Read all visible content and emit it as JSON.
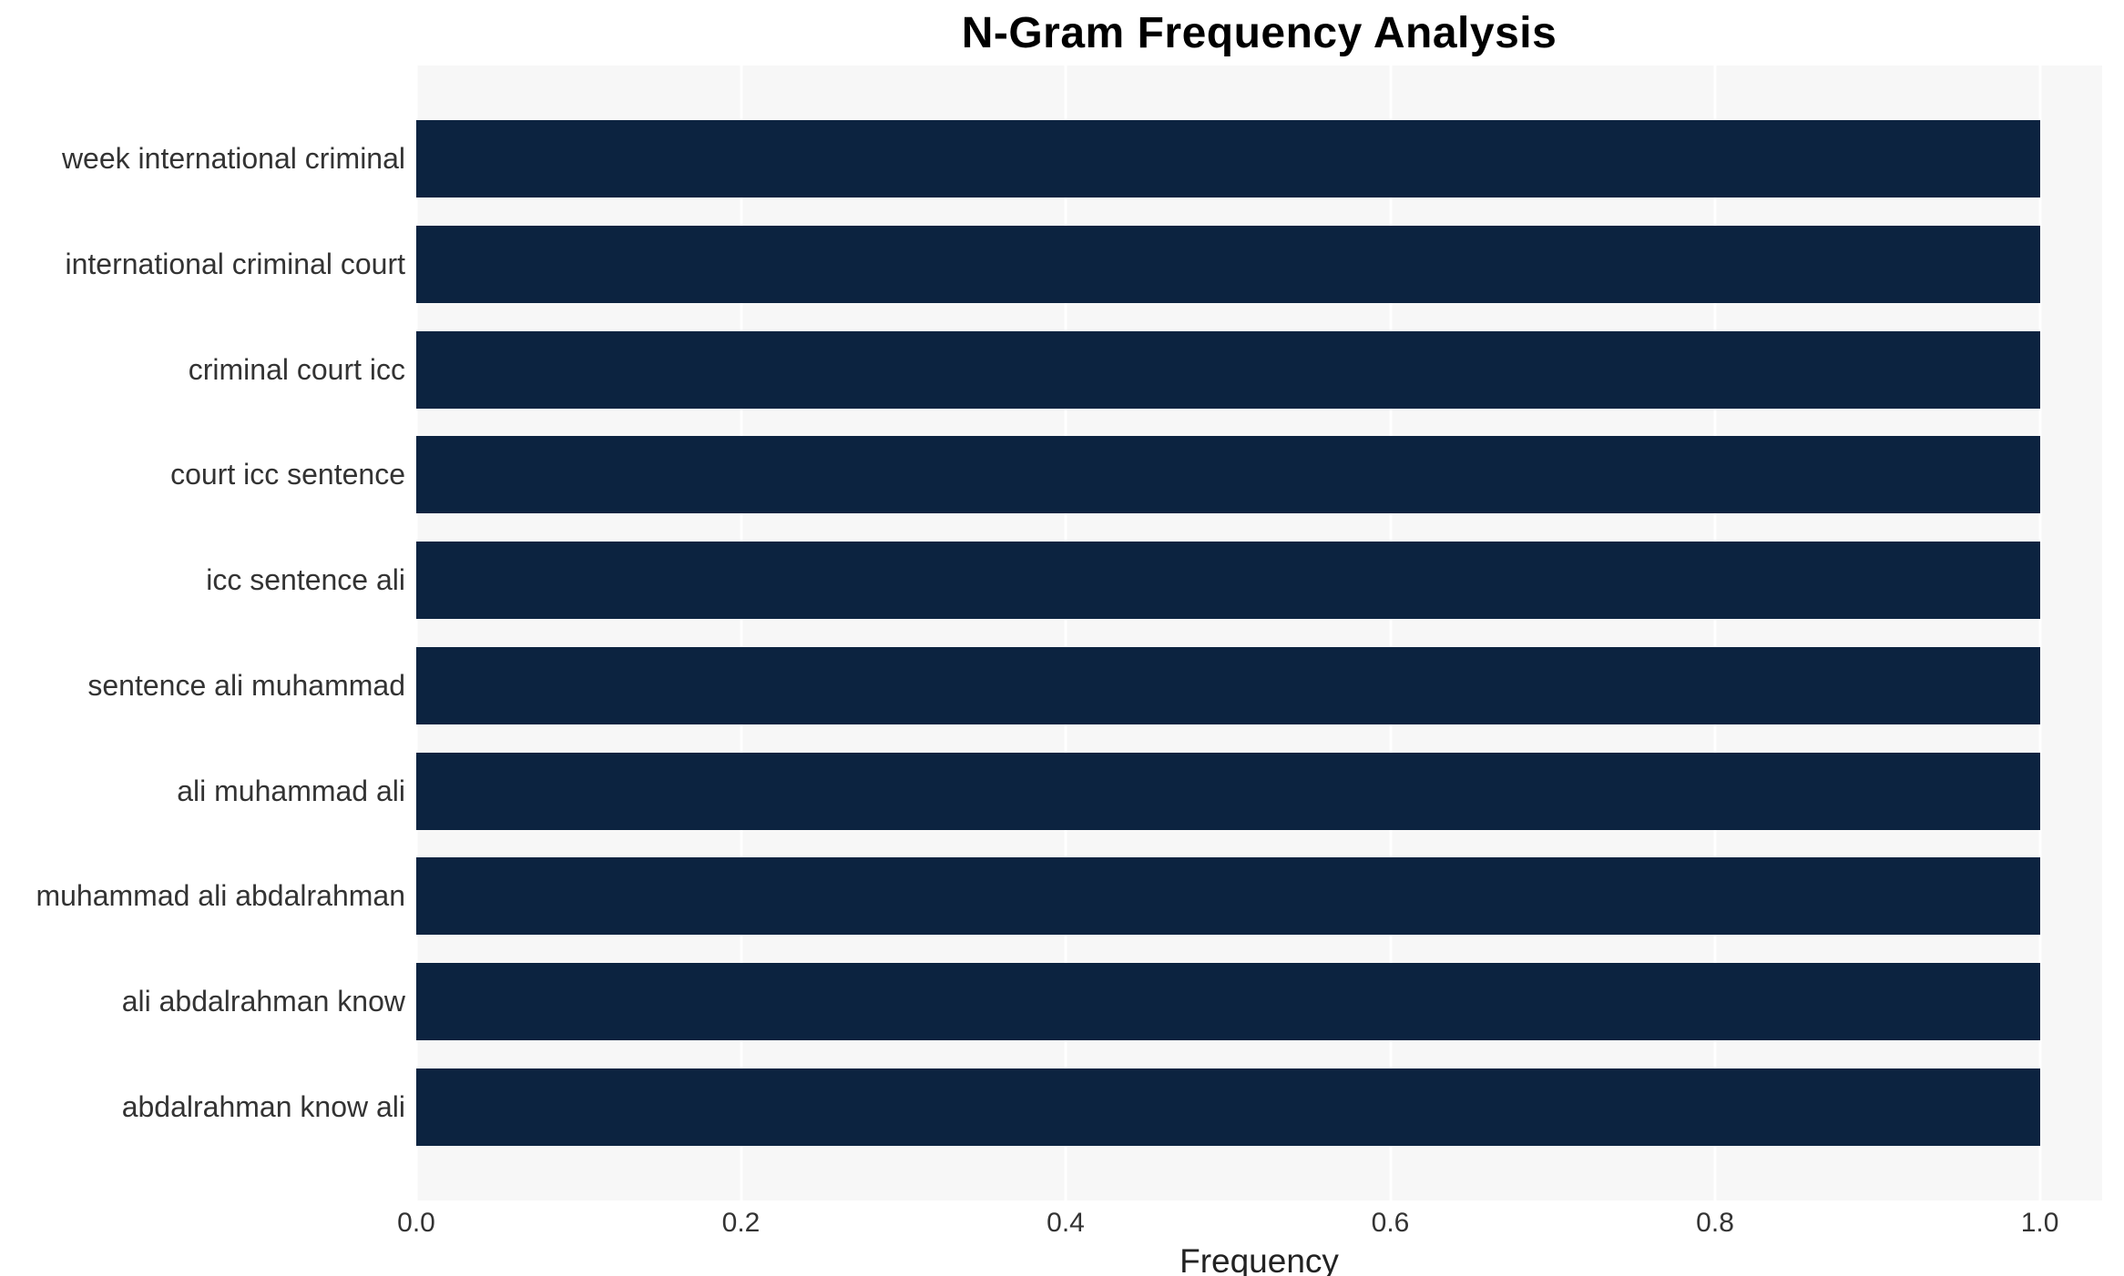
{
  "chart_data": {
    "type": "bar",
    "orientation": "horizontal",
    "title": "N-Gram Frequency Analysis",
    "xlabel": "Frequency",
    "ylabel": "",
    "categories": [
      "week international criminal",
      "international criminal court",
      "criminal court icc",
      "court icc sentence",
      "icc sentence ali",
      "sentence ali muhammad",
      "ali muhammad ali",
      "muhammad ali abdalrahman",
      "ali abdalrahman know",
      "abdalrahman know ali"
    ],
    "values": [
      1.0,
      1.0,
      1.0,
      1.0,
      1.0,
      1.0,
      1.0,
      1.0,
      1.0,
      1.0
    ],
    "x_ticks": [
      0.0,
      0.2,
      0.4,
      0.6,
      0.8,
      1.0
    ],
    "x_tick_labels": [
      "0.0",
      "0.2",
      "0.4",
      "0.6",
      "0.8",
      "1.0"
    ],
    "xlim": [
      0,
      1.0384
    ],
    "grid": true,
    "legend_position": "none",
    "colors": {
      "bar": "#0c2340",
      "plot_background": "#f7f7f7",
      "gridline": "#ffffff",
      "title_text": "#000000",
      "label_text": "#333333",
      "tick_text": "#333333"
    }
  }
}
